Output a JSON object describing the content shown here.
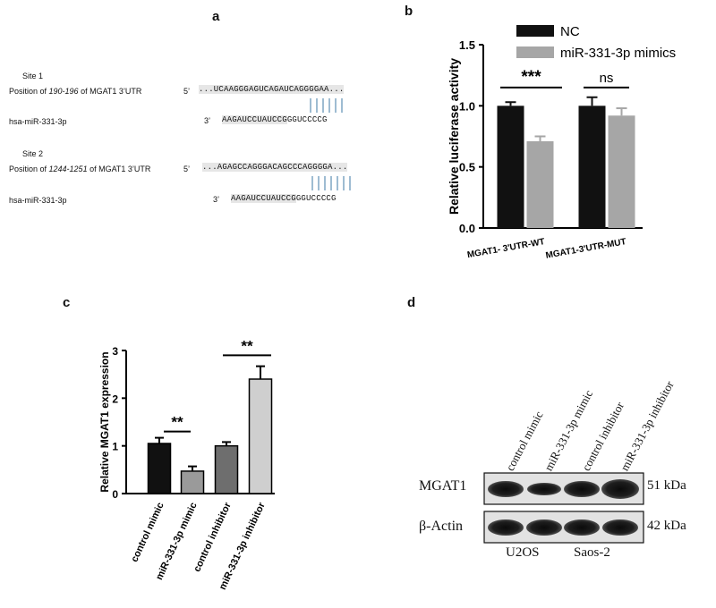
{
  "panels": {
    "a": "a",
    "b": "b",
    "c": "c",
    "d": "d"
  },
  "panel_a": {
    "site1": {
      "title": "Site 1",
      "position_prefix": "Position of ",
      "position_range": "190-196",
      "position_suffix": " of MGAT1 3’UTR",
      "five_prime": "5’",
      "target_seq_a": "...UCAAGGGAGUCAGAU",
      "target_seq_b": "CAGGGGAA...",
      "mirna_label": "hsa-miR-331-3p",
      "three_prime": "3’",
      "mirna_seq_a": "AAGAUCCUAUCCG",
      "mirna_seq_b": "GGUCCCCG"
    },
    "site2": {
      "title": "Site 2",
      "position_prefix": "Position of ",
      "position_range": "1244-1251",
      "position_suffix": " of MGAT1 3’UTR",
      "five_prime": "5’",
      "target_seq_a": "...AGAGCCAGGGACAGC",
      "target_seq_b": "CCAGGGGA...",
      "mirna_label": "hsa-miR-331-3p",
      "three_prime": "3’",
      "mirna_seq_a": "AAGAUCCUAUCCG",
      "mirna_seq_b": "GGUCCCCG"
    }
  },
  "chart_data": [
    {
      "type": "bar",
      "panel": "b",
      "categories": [
        "MGAT1- 3'UTR-WT",
        "MGAT1-3'UTR-MUT"
      ],
      "series": [
        {
          "name": "NC",
          "values": [
            1.0,
            1.0
          ],
          "errors": [
            0.03,
            0.07
          ],
          "color": "#111111"
        },
        {
          "name": "miR-331-3p mimics",
          "values": [
            0.71,
            0.92
          ],
          "errors": [
            0.04,
            0.06
          ],
          "color": "#a6a6a6"
        }
      ],
      "ylabel": "Relative luciferase activity",
      "ylim": [
        0,
        1.5
      ],
      "yticks": [
        "0.0",
        "0.5",
        "1.0",
        "1.5"
      ],
      "annotations": [
        "***",
        "ns"
      ],
      "legend": "top-right"
    },
    {
      "type": "bar",
      "panel": "c",
      "categories": [
        "control mimic",
        "miR-331-3p mimic",
        "control inhibitor",
        "miR-331-3p inhibitor"
      ],
      "values": [
        1.05,
        0.47,
        1.0,
        2.4
      ],
      "errors": [
        0.12,
        0.1,
        0.08,
        0.27
      ],
      "colors": [
        "#111111",
        "#9a9a9a",
        "#6e6e6e",
        "#cfcfcf"
      ],
      "ylabel": "Relative MGAT1 expression",
      "ylim": [
        0,
        3
      ],
      "yticks": [
        "0",
        "1",
        "2",
        "3"
      ],
      "annotations": [
        "**",
        "**"
      ]
    }
  ],
  "panel_d": {
    "lanes": [
      "control mimic",
      "miR-331-3p mimic",
      "control inhibitor",
      "miR-331-3p inhibitor"
    ],
    "rows": [
      {
        "protein": "MGAT1",
        "size": "51 kDa"
      },
      {
        "protein": "β-Actin",
        "size": "42 kDa"
      }
    ],
    "cell_lines": [
      "U2OS",
      "Saos-2"
    ]
  }
}
